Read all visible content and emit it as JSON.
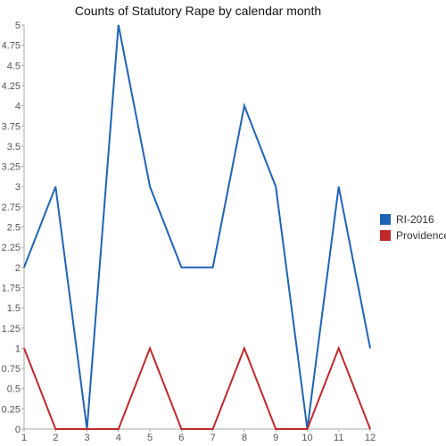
{
  "chart_data": {
    "type": "line",
    "title": "Counts of Statutory Rape by calendar month",
    "xlabel": "",
    "ylabel": "",
    "x": [
      1,
      2,
      3,
      4,
      5,
      6,
      7,
      8,
      9,
      10,
      11,
      12
    ],
    "x_tick_labels": [
      "1",
      "2",
      "3",
      "4",
      "5",
      "6",
      "7",
      "8",
      "9",
      "10",
      "11",
      "12"
    ],
    "ylim": [
      0,
      5
    ],
    "y_tick_labels": [
      "0",
      "0.25",
      "0.5",
      "0.75",
      "1",
      "1.25",
      "1.5",
      "1.75",
      "2",
      "2.25",
      "2.5",
      "2.75",
      "3",
      "3.25",
      "3.5",
      "3.75",
      "4",
      "4.25",
      "4.5",
      "4.75",
      "5"
    ],
    "y_tick_values": [
      0,
      0.25,
      0.5,
      0.75,
      1,
      1.25,
      1.5,
      1.75,
      2,
      2.25,
      2.5,
      2.75,
      3,
      3.25,
      3.5,
      3.75,
      4,
      4.25,
      4.5,
      4.75,
      5
    ],
    "grid": false,
    "legend_position": "right",
    "series": [
      {
        "name": "RI-2016",
        "color": "#1f63b5",
        "values": [
          2,
          3,
          0,
          5,
          3,
          2,
          2,
          4,
          3,
          0,
          3,
          1
        ]
      },
      {
        "name": "Providence",
        "color": "#c0282a",
        "values": [
          1,
          0,
          0,
          0,
          1,
          0,
          0,
          1,
          0,
          0,
          1,
          0
        ]
      }
    ]
  }
}
